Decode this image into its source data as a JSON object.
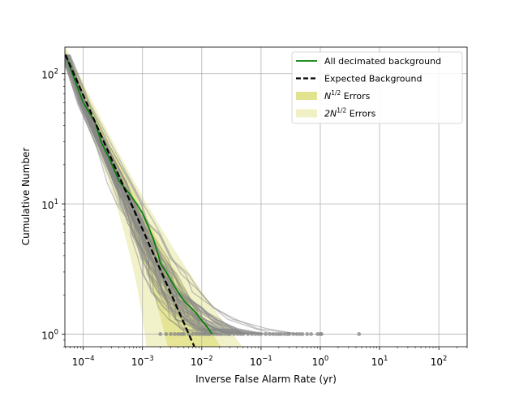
{
  "chart_data": {
    "type": "line",
    "xlabel": "Inverse False Alarm Rate (yr)",
    "ylabel": "Cumulative Number",
    "xscale": "log",
    "yscale": "log",
    "xlim": [
      4.9e-05,
      300
    ],
    "ylim": [
      0.8,
      160
    ],
    "grid": true,
    "legend_position": "top-right",
    "x_ticks": [
      {
        "value": 0.0001,
        "base": "10",
        "exp": "−4"
      },
      {
        "value": 0.001,
        "base": "10",
        "exp": "−3"
      },
      {
        "value": 0.01,
        "base": "10",
        "exp": "−2"
      },
      {
        "value": 0.1,
        "base": "10",
        "exp": "−1"
      },
      {
        "value": 1,
        "base": "10",
        "exp": "0"
      },
      {
        "value": 10,
        "base": "10",
        "exp": "1"
      },
      {
        "value": 100,
        "base": "10",
        "exp": "2"
      }
    ],
    "y_ticks": [
      {
        "value": 1,
        "base": "10",
        "exp": "0"
      },
      {
        "value": 10,
        "base": "10",
        "exp": "1"
      },
      {
        "value": 100,
        "base": "10",
        "exp": "2"
      }
    ],
    "legend": [
      {
        "key": "main",
        "label": "All decimated background",
        "style": "line",
        "color": "#008000"
      },
      {
        "key": "expected",
        "label": "Expected Background",
        "style": "dashed",
        "color": "#000000"
      },
      {
        "key": "band1",
        "label_prefix": "N",
        "label_sup": "1/2",
        "label_suffix": " Errors",
        "style": "patch",
        "color": "#e3e38f"
      },
      {
        "key": "band2",
        "label_prefix": "2N",
        "label_sup": "1/2",
        "label_suffix": " Errors",
        "style": "patch",
        "color": "#f0f0c4"
      }
    ],
    "series": [
      {
        "name": "All decimated background",
        "color": "#008000",
        "points": [
          [
            5e-05,
            140
          ],
          [
            0.0001,
            60
          ],
          [
            0.00016,
            42
          ],
          [
            0.0002,
            30
          ],
          [
            0.00028,
            22
          ],
          [
            0.0004,
            15
          ],
          [
            0.0006,
            12
          ],
          [
            0.0008,
            10
          ],
          [
            0.001,
            8.5
          ],
          [
            0.0012,
            7
          ],
          [
            0.0015,
            5.5
          ],
          [
            0.0018,
            4.2
          ],
          [
            0.002,
            3.5
          ],
          [
            0.0025,
            3
          ],
          [
            0.0035,
            2.3
          ],
          [
            0.005,
            1.8
          ],
          [
            0.008,
            1.45
          ],
          [
            0.012,
            1.15
          ],
          [
            0.015,
            1
          ]
        ]
      },
      {
        "name": "Expected Background",
        "color": "#000000",
        "points": [
          [
            5e-05,
            140
          ],
          [
            0.0075,
            0.8
          ]
        ]
      }
    ],
    "expected_band": {
      "x_range": [
        5e-05,
        0.05
      ],
      "sqrt_n_multiples": [
        1,
        2
      ]
    },
    "background_realizations": {
      "color": "#888888",
      "base_points": [
        [
          5e-05,
          140
        ],
        [
          0.0001,
          58
        ],
        [
          0.0002,
          29
        ],
        [
          0.0004,
          14.5
        ],
        [
          0.0006,
          9.8
        ],
        [
          0.0008,
          7.2
        ],
        [
          0.001,
          5.8
        ],
        [
          0.0015,
          3.8
        ],
        [
          0.002,
          2.9
        ],
        [
          0.003,
          2.1
        ],
        [
          0.005,
          1.6
        ],
        [
          0.008,
          1.3
        ],
        [
          0.015,
          1.1
        ],
        [
          0.03,
          1
        ]
      ],
      "spread": [
        0.06,
        0.08,
        0.1,
        0.13,
        0.16,
        0.18,
        0.2,
        0.24,
        0.28,
        0.32,
        0.38,
        0.45,
        0.55,
        0.7
      ],
      "seed": 12345,
      "count": 60,
      "endpoints": [
        0.002,
        0.0025,
        0.003,
        0.0035,
        0.004,
        0.0045,
        0.005,
        0.006,
        0.007,
        0.008,
        0.009,
        0.01,
        0.011,
        0.012,
        0.013,
        0.014,
        0.016,
        0.018,
        0.02,
        0.022,
        0.025,
        0.028,
        0.03,
        0.035,
        0.04,
        0.045,
        0.05,
        0.06,
        0.07,
        0.08,
        0.09,
        0.1,
        0.12,
        0.14,
        0.16,
        0.18,
        0.2,
        0.22,
        0.25,
        0.28,
        0.3,
        0.35,
        0.4,
        0.45,
        0.5,
        0.6,
        0.7,
        0.9,
        1.0,
        1.05,
        4.5
      ]
    }
  }
}
